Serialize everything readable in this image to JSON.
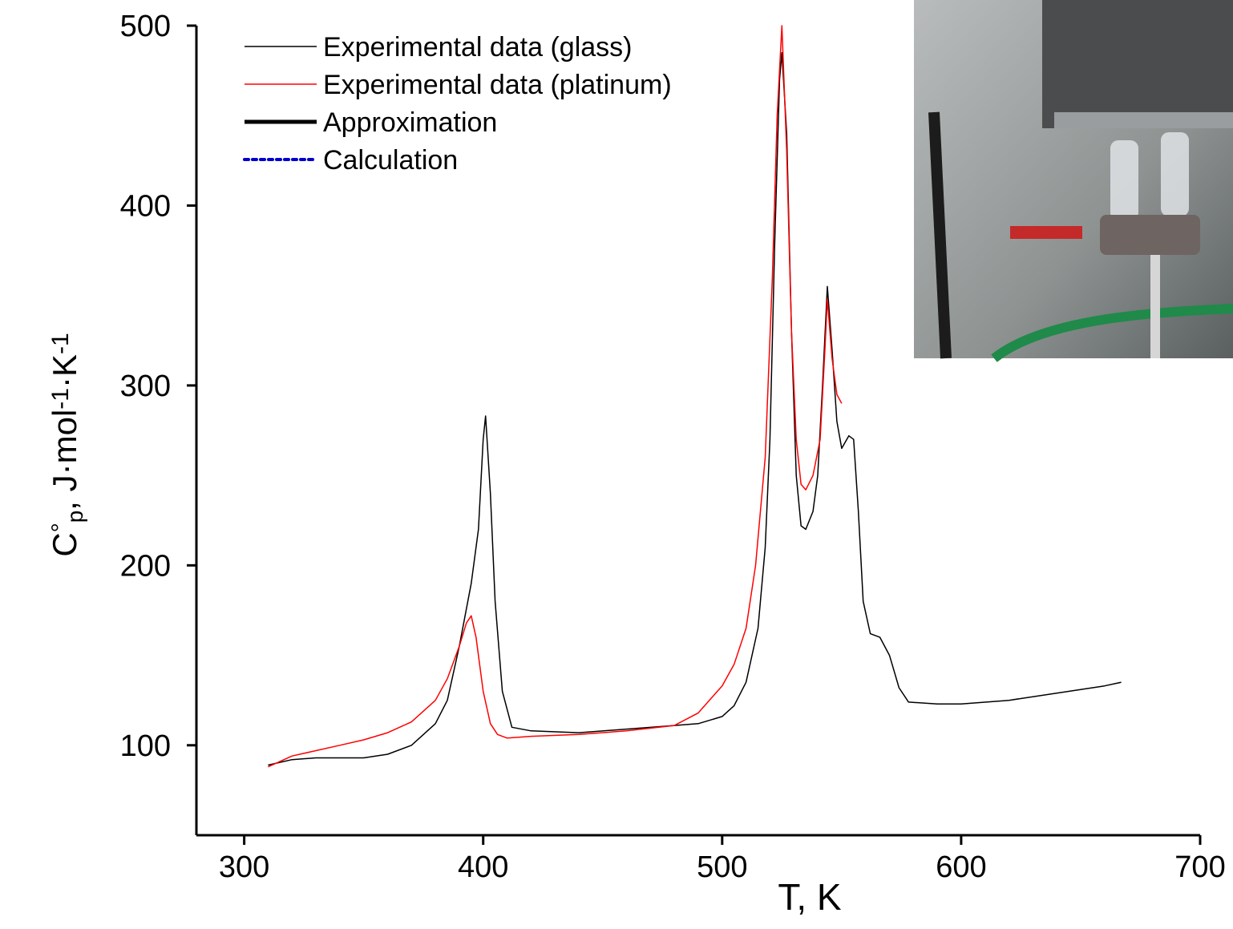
{
  "chart_data": {
    "type": "line",
    "xlabel": "T, K",
    "ylabel": [
      "C",
      "°",
      "p",
      ", J·mol",
      "-1",
      "·K",
      "-1"
    ],
    "xlim": [
      280,
      700
    ],
    "xticks": [
      300,
      400,
      500,
      600,
      700
    ],
    "ylim": [
      50,
      500
    ],
    "yticks": [
      100,
      200,
      300,
      400,
      500
    ],
    "legend": "upper left",
    "series": [
      {
        "name": "Experimental data (glass)",
        "color": "#000000",
        "width": 1.5,
        "dash": "solid",
        "x": [
          310,
          320,
          330,
          340,
          350,
          360,
          370,
          380,
          385,
          390,
          395,
          398,
          400,
          401,
          403,
          405,
          408,
          412,
          420,
          440,
          460,
          480,
          490,
          500,
          505,
          510,
          515,
          518,
          520,
          522,
          524,
          525,
          527,
          529,
          531,
          533,
          535,
          538,
          540,
          542,
          544,
          546,
          548,
          550,
          553,
          555,
          557,
          559,
          562,
          566,
          570,
          574,
          578,
          590,
          600,
          620,
          640,
          660,
          667
        ],
        "values": [
          89,
          92,
          93,
          93,
          93,
          95,
          100,
          112,
          125,
          155,
          190,
          220,
          270,
          283,
          240,
          180,
          130,
          110,
          108,
          107,
          109,
          111,
          112,
          116,
          122,
          135,
          165,
          210,
          270,
          380,
          470,
          485,
          440,
          330,
          250,
          222,
          220,
          230,
          250,
          300,
          355,
          320,
          280,
          265,
          272,
          270,
          230,
          180,
          162,
          160,
          150,
          132,
          124,
          123,
          123,
          125,
          129,
          133,
          135
        ]
      },
      {
        "name": "Experimental data (platinum)",
        "color": "#ff0000",
        "width": 1.5,
        "dash": "solid",
        "x": [
          310,
          320,
          330,
          340,
          350,
          360,
          370,
          380,
          385,
          390,
          393,
          395,
          397,
          400,
          403,
          406,
          410,
          420,
          440,
          460,
          480,
          490,
          500,
          505,
          510,
          514,
          518,
          521,
          523,
          525,
          527,
          529,
          531,
          533,
          535,
          538,
          541,
          543,
          544,
          546,
          548,
          550
        ],
        "values": [
          88,
          94,
          97,
          100,
          103,
          107,
          113,
          125,
          137,
          155,
          168,
          172,
          160,
          130,
          112,
          106,
          104,
          105,
          106,
          108,
          111,
          118,
          133,
          145,
          165,
          200,
          260,
          360,
          450,
          500,
          430,
          330,
          270,
          245,
          242,
          250,
          270,
          320,
          348,
          315,
          295,
          290
        ]
      },
      {
        "name": "Approximation",
        "color": "#000000",
        "width": 5,
        "dash": "solid",
        "x": [],
        "values": []
      },
      {
        "name": "Calculation",
        "color": "#0000cc",
        "width": 4,
        "dash": "dotted",
        "x": [],
        "values": []
      }
    ]
  }
}
